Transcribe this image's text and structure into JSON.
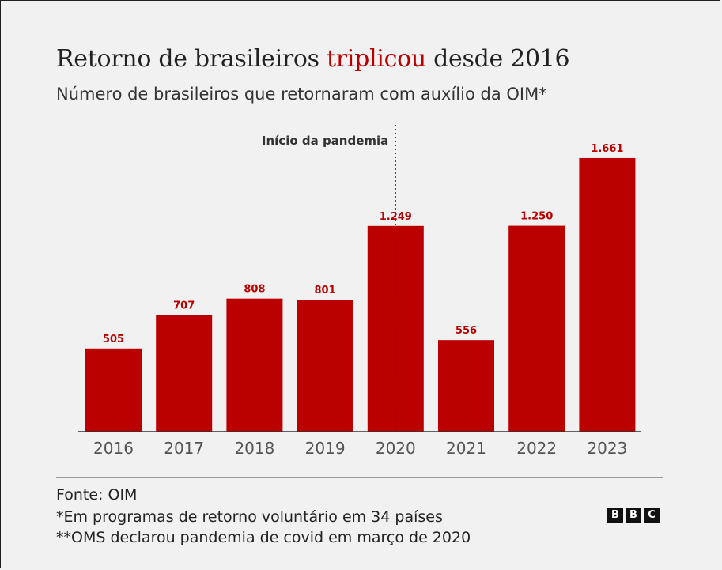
{
  "header": {
    "title_part1": "Retorno de brasileiros ",
    "title_accent": "triplicou",
    "title_part2": " desde 2016",
    "subtitle": "Número de brasileiros que retornaram com auxílio da OIM*"
  },
  "chart_data": {
    "type": "bar",
    "title": "Retorno de brasileiros triplicou desde 2016",
    "subtitle": "Número de brasileiros que retornaram com auxílio da OIM*",
    "categories": [
      "2016",
      "2017",
      "2018",
      "2019",
      "2020",
      "2021",
      "2022",
      "2023"
    ],
    "values": [
      505,
      707,
      808,
      801,
      1249,
      556,
      1250,
      1661
    ],
    "value_labels": [
      "505",
      "707",
      "808",
      "801",
      "1.249",
      "556",
      "1.250",
      "1.661"
    ],
    "ylim": [
      0,
      1800
    ],
    "grid": false,
    "xlabel": "",
    "ylabel": "",
    "bar_color": "#bb0000",
    "annotation": {
      "text": "Início da pandemia",
      "at_category": "2020",
      "style": "dotted vertical line"
    }
  },
  "footer": {
    "source": "Fonte: OIM",
    "note1": "*Em programas de retorno voluntário em 34 países",
    "note2": "**OMS declarou pandemia de covid em março de 2020",
    "logo": [
      "B",
      "B",
      "C"
    ]
  }
}
